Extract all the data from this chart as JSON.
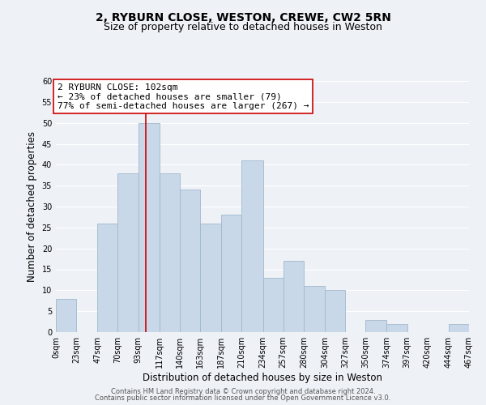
{
  "title": "2, RYBURN CLOSE, WESTON, CREWE, CW2 5RN",
  "subtitle": "Size of property relative to detached houses in Weston",
  "xlabel": "Distribution of detached houses by size in Weston",
  "ylabel": "Number of detached properties",
  "footer_lines": [
    "Contains HM Land Registry data © Crown copyright and database right 2024.",
    "Contains public sector information licensed under the Open Government Licence v3.0."
  ],
  "bins": [
    0,
    23,
    47,
    70,
    93,
    117,
    140,
    163,
    187,
    210,
    234,
    257,
    280,
    304,
    327,
    350,
    374,
    397,
    420,
    444,
    467
  ],
  "bin_labels": [
    "0sqm",
    "23sqm",
    "47sqm",
    "70sqm",
    "93sqm",
    "117sqm",
    "140sqm",
    "163sqm",
    "187sqm",
    "210sqm",
    "234sqm",
    "257sqm",
    "280sqm",
    "304sqm",
    "327sqm",
    "350sqm",
    "374sqm",
    "397sqm",
    "420sqm",
    "444sqm",
    "467sqm"
  ],
  "bar_heights": [
    8,
    0,
    26,
    38,
    50,
    38,
    34,
    26,
    28,
    41,
    13,
    17,
    11,
    10,
    0,
    3,
    2,
    0,
    0,
    2
  ],
  "bar_color": "#c8d8e8",
  "bar_edge_color": "#a0b8cc",
  "property_line_x": 102,
  "property_line_color": "#cc0000",
  "annotation_title": "2 RYBURN CLOSE: 102sqm",
  "annotation_line1": "← 23% of detached houses are smaller (79)",
  "annotation_line2": "77% of semi-detached houses are larger (267) →",
  "annotation_box_color": "#ffffff",
  "annotation_box_edge": "#cc0000",
  "ylim": [
    0,
    60
  ],
  "yticks": [
    0,
    5,
    10,
    15,
    20,
    25,
    30,
    35,
    40,
    45,
    50,
    55,
    60
  ],
  "background_color": "#eef2f7",
  "grid_color": "#ffffff",
  "title_fontsize": 10,
  "subtitle_fontsize": 9,
  "axis_fontsize": 8.5,
  "tick_fontsize": 7,
  "annotation_fontsize": 8,
  "footer_fontsize": 6
}
